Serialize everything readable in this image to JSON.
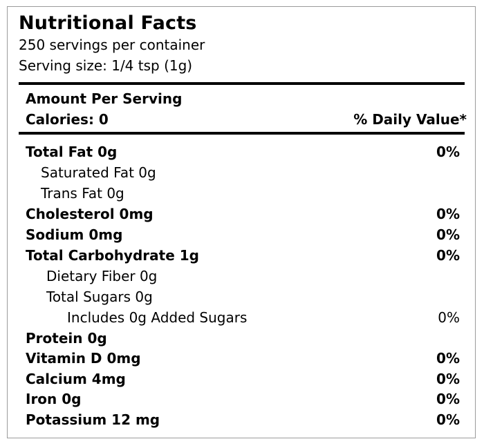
{
  "title": "Nutritional Facts",
  "servings_per_container": "250 servings per container",
  "serving_size": "Serving size: 1/4 tsp (1g)",
  "amount_per_serving": "Amount Per Serving",
  "calories": "Calories: 0",
  "daily_value_header": "% Daily Value*",
  "nutrients": [
    {
      "name": "Total Fat 0g",
      "dv": "0%"
    },
    {
      "name": "Saturated Fat 0g",
      "dv": ""
    },
    {
      "name": "Trans Fat 0g",
      "dv": ""
    },
    {
      "name": "Cholesterol 0mg",
      "dv": "0%"
    },
    {
      "name": "Sodium 0mg",
      "dv": "0%"
    },
    {
      "name": "Total Carbohydrate 1g",
      "dv": "0%"
    },
    {
      "name": "Dietary Fiber 0g",
      "dv": ""
    },
    {
      "name": "Total Sugars 0g",
      "dv": ""
    },
    {
      "name": "Includes 0g Added Sugars",
      "dv": "0%"
    },
    {
      "name": "Protein 0g",
      "dv": ""
    },
    {
      "name": "Vitamin D 0mg",
      "dv": "0%"
    },
    {
      "name": "Calcium 4mg",
      "dv": "0%"
    },
    {
      "name": "Iron 0g",
      "dv": "0%"
    },
    {
      "name": "Potassium 12 mg",
      "dv": "0%"
    }
  ]
}
